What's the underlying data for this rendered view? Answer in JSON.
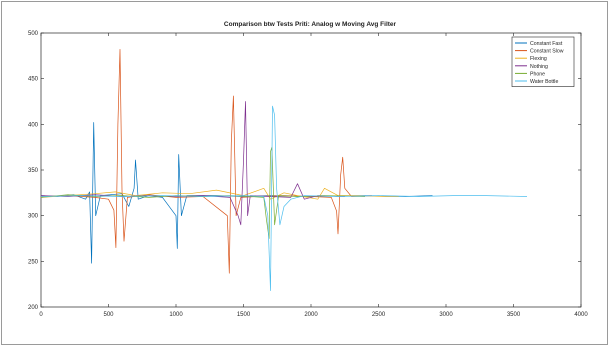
{
  "chart_data": {
    "type": "line",
    "title": "Comparison btw Tests Priti: Analog w Moving Avg Filter",
    "xlabel": "",
    "ylabel": "",
    "xlim": [
      0,
      4000
    ],
    "ylim": [
      200,
      500
    ],
    "x_ticks": [
      0,
      500,
      1000,
      1500,
      2000,
      2500,
      3000,
      3500,
      4000
    ],
    "y_ticks": [
      200,
      250,
      300,
      350,
      400,
      450,
      500
    ],
    "grid": false,
    "legend_position": "top-right",
    "series": [
      {
        "name": "Constant Fast",
        "color": "#0072BD",
        "points": [
          [
            0,
            322
          ],
          [
            120,
            321
          ],
          [
            240,
            323
          ],
          [
            330,
            318
          ],
          [
            360,
            326
          ],
          [
            375,
            248
          ],
          [
            390,
            402
          ],
          [
            405,
            300
          ],
          [
            440,
            322
          ],
          [
            600,
            324
          ],
          [
            650,
            310
          ],
          [
            690,
            330
          ],
          [
            700,
            361
          ],
          [
            720,
            318
          ],
          [
            800,
            322
          ],
          [
            900,
            320
          ],
          [
            1000,
            300
          ],
          [
            1010,
            264
          ],
          [
            1020,
            367
          ],
          [
            1040,
            300
          ],
          [
            1080,
            322
          ],
          [
            1300,
            322
          ],
          [
            1500,
            321
          ],
          [
            1700,
            322
          ],
          [
            2000,
            321
          ],
          [
            2400,
            322
          ],
          [
            2700,
            321
          ],
          [
            2900,
            322
          ]
        ]
      },
      {
        "name": "Constant Slow",
        "color": "#D95319",
        "points": [
          [
            0,
            321
          ],
          [
            200,
            322
          ],
          [
            400,
            320
          ],
          [
            500,
            318
          ],
          [
            540,
            306
          ],
          [
            555,
            265
          ],
          [
            570,
            400
          ],
          [
            585,
            482
          ],
          [
            600,
            328
          ],
          [
            615,
            272
          ],
          [
            640,
            320
          ],
          [
            800,
            323
          ],
          [
            1000,
            320
          ],
          [
            1200,
            321
          ],
          [
            1380,
            300
          ],
          [
            1395,
            237
          ],
          [
            1410,
            380
          ],
          [
            1425,
            431
          ],
          [
            1445,
            300
          ],
          [
            1480,
            320
          ],
          [
            1600,
            321
          ],
          [
            1800,
            322
          ],
          [
            2000,
            321
          ],
          [
            2150,
            320
          ],
          [
            2190,
            305
          ],
          [
            2200,
            280
          ],
          [
            2220,
            345
          ],
          [
            2235,
            364
          ],
          [
            2250,
            330
          ],
          [
            2300,
            321
          ],
          [
            2450,
            322
          ]
        ]
      },
      {
        "name": "Flexing",
        "color": "#EDB120",
        "points": [
          [
            0,
            320
          ],
          [
            200,
            322
          ],
          [
            400,
            324
          ],
          [
            550,
            326
          ],
          [
            700,
            322
          ],
          [
            900,
            325
          ],
          [
            1100,
            324
          ],
          [
            1300,
            328
          ],
          [
            1500,
            322
          ],
          [
            1650,
            330
          ],
          [
            1700,
            318
          ],
          [
            1800,
            325
          ],
          [
            1900,
            322
          ],
          [
            2050,
            318
          ],
          [
            2100,
            330
          ],
          [
            2200,
            322
          ],
          [
            2350,
            322
          ],
          [
            2550,
            321
          ],
          [
            2650,
            321
          ]
        ]
      },
      {
        "name": "Nothing",
        "color": "#7E2F8E",
        "points": [
          [
            0,
            322
          ],
          [
            200,
            321
          ],
          [
            400,
            323
          ],
          [
            600,
            321
          ],
          [
            800,
            322
          ],
          [
            1000,
            321
          ],
          [
            1200,
            322
          ],
          [
            1400,
            320
          ],
          [
            1460,
            300
          ],
          [
            1480,
            290
          ],
          [
            1500,
            360
          ],
          [
            1515,
            425
          ],
          [
            1530,
            300
          ],
          [
            1550,
            322
          ],
          [
            1700,
            321
          ],
          [
            1850,
            320
          ],
          [
            1900,
            335
          ],
          [
            1950,
            318
          ],
          [
            2050,
            322
          ],
          [
            2250,
            321
          ]
        ]
      },
      {
        "name": "Phone",
        "color": "#77AC30",
        "points": [
          [
            0,
            320
          ],
          [
            200,
            323
          ],
          [
            400,
            321
          ],
          [
            600,
            322
          ],
          [
            800,
            320
          ],
          [
            1000,
            322
          ],
          [
            1200,
            321
          ],
          [
            1400,
            322
          ],
          [
            1550,
            321
          ],
          [
            1650,
            320
          ],
          [
            1670,
            296
          ],
          [
            1690,
            275
          ],
          [
            1700,
            370
          ],
          [
            1710,
            375
          ],
          [
            1730,
            290
          ],
          [
            1760,
            322
          ],
          [
            1900,
            321
          ],
          [
            2100,
            322
          ],
          [
            2400,
            321
          ]
        ]
      },
      {
        "name": "Water Bottle",
        "color": "#4DBEEE",
        "points": [
          [
            0,
            321
          ],
          [
            300,
            322
          ],
          [
            600,
            321
          ],
          [
            900,
            322
          ],
          [
            1200,
            321
          ],
          [
            1500,
            322
          ],
          [
            1650,
            321
          ],
          [
            1680,
            300
          ],
          [
            1700,
            218
          ],
          [
            1715,
            420
          ],
          [
            1730,
            410
          ],
          [
            1745,
            330
          ],
          [
            1770,
            290
          ],
          [
            1800,
            310
          ],
          [
            1850,
            318
          ],
          [
            1950,
            322
          ],
          [
            2200,
            321
          ],
          [
            2500,
            322
          ],
          [
            2800,
            321
          ],
          [
            3050,
            322
          ],
          [
            3300,
            322
          ],
          [
            3600,
            321
          ]
        ]
      }
    ]
  }
}
